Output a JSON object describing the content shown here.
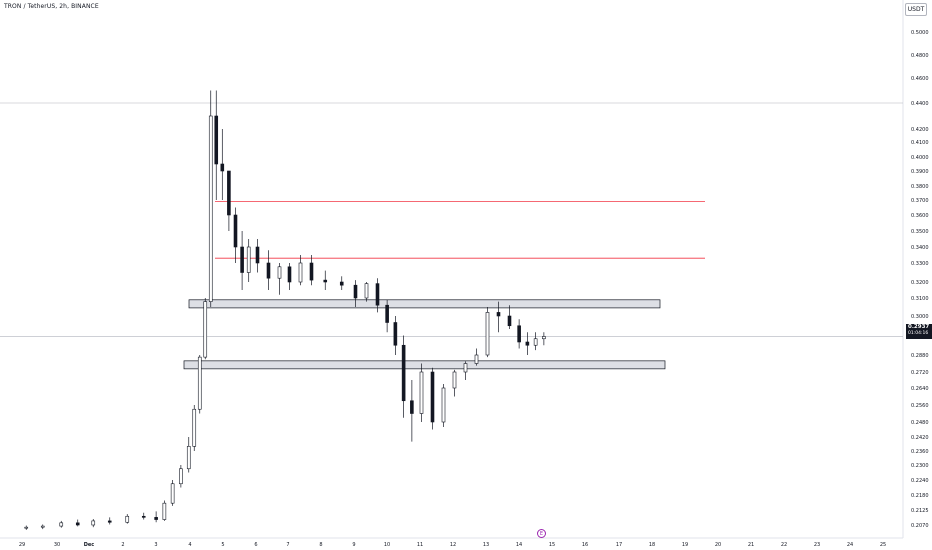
{
  "header": {
    "title": "TRON / TetherUS, 2h, BINANCE",
    "currency": "USDT"
  },
  "last_price": {
    "value": "0.2937",
    "countdown": "01:04:16"
  },
  "event_icon": {
    "symbol": "E",
    "color": "#9c27b0"
  },
  "colors": {
    "up_fill": "#ffffff",
    "down_fill": "#131722",
    "candle_stroke": "#131722",
    "resistance_line": "#f23645",
    "zone_fill": "#d1d4dc",
    "zone_stroke": "#131722",
    "grid": "#f0f3fa",
    "axis_text": "#131722"
  },
  "chart_data": {
    "type": "candlestick",
    "title": "TRON / TetherUS, 2h, BINANCE",
    "y_axis": {
      "ticks": [
        "0.5000",
        "0.4800",
        "0.4600",
        "0.4400",
        "0.4200",
        "0.4100",
        "0.4000",
        "0.3900",
        "0.3800",
        "0.3700",
        "0.3600",
        "0.3500",
        "0.3400",
        "0.3300",
        "0.3200",
        "0.3100",
        "0.3000",
        "0.2880",
        "0.2720",
        "0.2640",
        "0.2560",
        "0.2480",
        "0.2420",
        "0.2360",
        "0.2300",
        "0.2240",
        "0.2180",
        "0.2125",
        "0.2070"
      ],
      "position": "right"
    },
    "x_axis": {
      "ticks": [
        "29",
        "30",
        "Dec",
        "2",
        "3",
        "4",
        "5",
        "6",
        "7",
        "8",
        "9",
        "10",
        "11",
        "12",
        "13",
        "14",
        "15",
        "16",
        "17",
        "18",
        "19",
        "20",
        "21",
        "22",
        "23",
        "24",
        "25"
      ]
    },
    "ohlc": [
      {
        "x": "11-29",
        "o": 0.206,
        "h": 0.2068,
        "l": 0.2052,
        "c": 0.2062
      },
      {
        "x": "11-29",
        "o": 0.2062,
        "h": 0.2072,
        "l": 0.2055,
        "c": 0.2066
      },
      {
        "x": "11-30",
        "o": 0.2066,
        "h": 0.2085,
        "l": 0.206,
        "c": 0.2078
      },
      {
        "x": "11-30",
        "o": 0.2078,
        "h": 0.209,
        "l": 0.2065,
        "c": 0.207
      },
      {
        "x": "12-01",
        "o": 0.207,
        "h": 0.2092,
        "l": 0.2062,
        "c": 0.2085
      },
      {
        "x": "12-01",
        "o": 0.2085,
        "h": 0.2098,
        "l": 0.2072,
        "c": 0.208
      },
      {
        "x": "12-02",
        "o": 0.208,
        "h": 0.211,
        "l": 0.2075,
        "c": 0.2102
      },
      {
        "x": "12-02",
        "o": 0.2102,
        "h": 0.2115,
        "l": 0.209,
        "c": 0.2098
      },
      {
        "x": "12-03",
        "o": 0.2098,
        "h": 0.212,
        "l": 0.208,
        "c": 0.209
      },
      {
        "x": "12-03",
        "o": 0.209,
        "h": 0.216,
        "l": 0.2085,
        "c": 0.215
      },
      {
        "x": "12-03",
        "o": 0.215,
        "h": 0.224,
        "l": 0.214,
        "c": 0.2225
      },
      {
        "x": "12-03",
        "o": 0.2225,
        "h": 0.23,
        "l": 0.221,
        "c": 0.2285
      },
      {
        "x": "12-04",
        "o": 0.2285,
        "h": 0.242,
        "l": 0.227,
        "c": 0.238
      },
      {
        "x": "12-04",
        "o": 0.238,
        "h": 0.256,
        "l": 0.236,
        "c": 0.254
      },
      {
        "x": "12-04",
        "o": 0.254,
        "h": 0.288,
        "l": 0.252,
        "c": 0.286
      },
      {
        "x": "12-04",
        "o": 0.286,
        "h": 0.31,
        "l": 0.284,
        "c": 0.308
      },
      {
        "x": "12-04",
        "o": 0.308,
        "h": 0.45,
        "l": 0.305,
        "c": 0.43
      },
      {
        "x": "12-04",
        "o": 0.43,
        "h": 0.45,
        "l": 0.37,
        "c": 0.395
      },
      {
        "x": "12-05",
        "o": 0.395,
        "h": 0.42,
        "l": 0.37,
        "c": 0.39
      },
      {
        "x": "12-05",
        "o": 0.39,
        "h": 0.39,
        "l": 0.35,
        "c": 0.36
      },
      {
        "x": "12-05",
        "o": 0.36,
        "h": 0.365,
        "l": 0.33,
        "c": 0.34
      },
      {
        "x": "12-05",
        "o": 0.34,
        "h": 0.35,
        "l": 0.315,
        "c": 0.325
      },
      {
        "x": "12-05",
        "o": 0.325,
        "h": 0.345,
        "l": 0.32,
        "c": 0.34
      },
      {
        "x": "12-06",
        "o": 0.34,
        "h": 0.345,
        "l": 0.325,
        "c": 0.33
      },
      {
        "x": "12-06",
        "o": 0.33,
        "h": 0.338,
        "l": 0.315,
        "c": 0.322
      },
      {
        "x": "12-06",
        "o": 0.322,
        "h": 0.33,
        "l": 0.312,
        "c": 0.328
      },
      {
        "x": "12-07",
        "o": 0.328,
        "h": 0.33,
        "l": 0.315,
        "c": 0.32
      },
      {
        "x": "12-07",
        "o": 0.32,
        "h": 0.335,
        "l": 0.318,
        "c": 0.33
      },
      {
        "x": "12-07",
        "o": 0.33,
        "h": 0.335,
        "l": 0.318,
        "c": 0.321
      },
      {
        "x": "12-08",
        "o": 0.321,
        "h": 0.326,
        "l": 0.315,
        "c": 0.32
      },
      {
        "x": "12-08",
        "o": 0.32,
        "h": 0.323,
        "l": 0.315,
        "c": 0.318
      },
      {
        "x": "12-09",
        "o": 0.318,
        "h": 0.321,
        "l": 0.305,
        "c": 0.31
      },
      {
        "x": "12-09",
        "o": 0.31,
        "h": 0.32,
        "l": 0.308,
        "c": 0.319
      },
      {
        "x": "12-09",
        "o": 0.319,
        "h": 0.322,
        "l": 0.302,
        "c": 0.306
      },
      {
        "x": "12-10",
        "o": 0.306,
        "h": 0.309,
        "l": 0.295,
        "c": 0.298
      },
      {
        "x": "12-10",
        "o": 0.298,
        "h": 0.3,
        "l": 0.288,
        "c": 0.291
      },
      {
        "x": "12-10",
        "o": 0.291,
        "h": 0.294,
        "l": 0.25,
        "c": 0.258
      },
      {
        "x": "12-10",
        "o": 0.258,
        "h": 0.268,
        "l": 0.24,
        "c": 0.252
      },
      {
        "x": "12-11",
        "o": 0.252,
        "h": 0.28,
        "l": 0.248,
        "c": 0.272
      },
      {
        "x": "12-11",
        "o": 0.272,
        "h": 0.276,
        "l": 0.245,
        "c": 0.248
      },
      {
        "x": "12-11",
        "o": 0.248,
        "h": 0.266,
        "l": 0.246,
        "c": 0.264
      },
      {
        "x": "12-12",
        "o": 0.264,
        "h": 0.274,
        "l": 0.26,
        "c": 0.272
      },
      {
        "x": "12-12",
        "o": 0.272,
        "h": 0.282,
        "l": 0.268,
        "c": 0.28
      },
      {
        "x": "12-12",
        "o": 0.28,
        "h": 0.29,
        "l": 0.278,
        "c": 0.288
      },
      {
        "x": "12-13",
        "o": 0.288,
        "h": 0.305,
        "l": 0.286,
        "c": 0.302
      },
      {
        "x": "12-13",
        "o": 0.302,
        "h": 0.308,
        "l": 0.295,
        "c": 0.3
      },
      {
        "x": "12-13",
        "o": 0.3,
        "h": 0.306,
        "l": 0.296,
        "c": 0.297
      },
      {
        "x": "12-14",
        "o": 0.297,
        "h": 0.299,
        "l": 0.29,
        "c": 0.292
      },
      {
        "x": "12-14",
        "o": 0.292,
        "h": 0.295,
        "l": 0.288,
        "c": 0.291
      },
      {
        "x": "12-14",
        "o": 0.291,
        "h": 0.295,
        "l": 0.2895,
        "c": 0.293
      },
      {
        "x": "12-14",
        "o": 0.293,
        "h": 0.295,
        "l": 0.291,
        "c": 0.2937
      }
    ],
    "horizontal_lines": [
      {
        "price": 0.44,
        "color": "#b2b5be"
      },
      {
        "price": 0.369,
        "color": "#f23645"
      },
      {
        "price": 0.333,
        "color": "#f23645"
      },
      {
        "price": 0.2937,
        "color": "#b2b5be"
      }
    ],
    "zones": [
      {
        "top": 0.309,
        "bottom": 0.3045,
        "from": "12-04",
        "to": "12-18"
      },
      {
        "top": 0.2825,
        "bottom": 0.2775,
        "from": "12-04",
        "to": "12-18"
      }
    ],
    "grid": false,
    "legend": "none"
  }
}
